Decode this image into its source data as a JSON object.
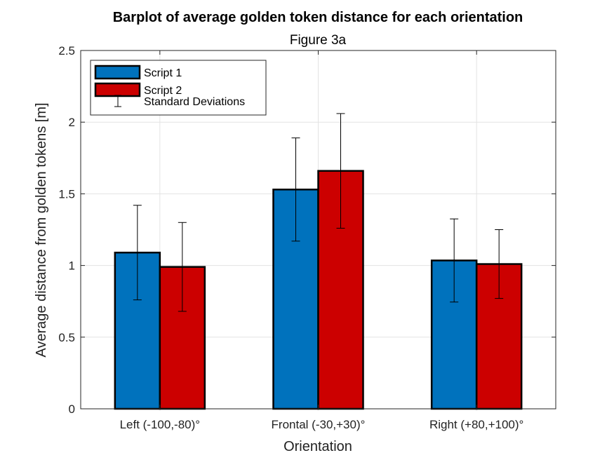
{
  "chart_data": {
    "type": "bar",
    "title": "Barplot of average golden token distance for each orientation",
    "subtitle": "Figure 3a",
    "xlabel": "Orientation",
    "ylabel": "Average distance from golden tokens [m]",
    "categories": [
      "Left (-100,-80)°",
      "Frontal (-30,+30)°",
      "Right (+80,+100)°"
    ],
    "ylim": [
      0,
      2.5
    ],
    "yticks": [
      0,
      0.5,
      1,
      1.5,
      2,
      2.5
    ],
    "ytick_labels": [
      "0",
      "0.5",
      "1",
      "1.5",
      "2",
      "2.5"
    ],
    "grid": true,
    "legend_position": "top-left",
    "series": [
      {
        "name": "Script 1",
        "color": "#0072BD",
        "values": [
          1.09,
          1.53,
          1.035
        ],
        "std": [
          0.33,
          0.36,
          0.29
        ]
      },
      {
        "name": "Script 2",
        "color": "#CC0000",
        "values": [
          0.99,
          1.66,
          1.01
        ],
        "std": [
          0.31,
          0.4,
          0.24
        ]
      }
    ],
    "errorbar_legend": "Standard Deviations"
  }
}
